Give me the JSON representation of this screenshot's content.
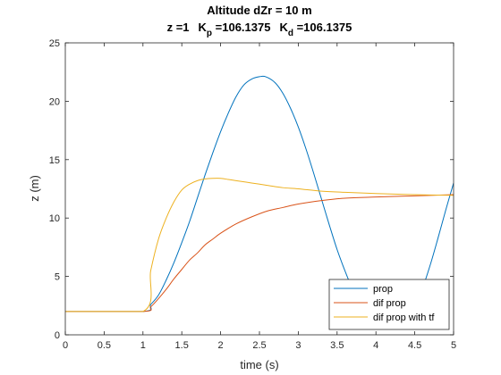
{
  "figure": {
    "title_line1": "Altitude dZr = 10 m",
    "title_line2": {
      "z_part": "z =1",
      "kp_symbol": "K",
      "kp_sub": "p",
      "kp_value": " =106.1375",
      "kd_symbol": "K",
      "kd_sub": "d",
      "kd_value": " =106.1375"
    }
  },
  "chart_data": {
    "type": "line",
    "xlabel": "time (s)",
    "ylabel": "z (m)",
    "xlim": [
      0,
      5
    ],
    "ylim": [
      0,
      25
    ],
    "x_ticks": [
      0,
      0.5,
      1,
      1.5,
      2,
      2.5,
      3,
      3.5,
      4,
      4.5,
      5
    ],
    "y_ticks": [
      0,
      5,
      10,
      15,
      20,
      25
    ],
    "x_tick_labels": [
      "0",
      "0.5",
      "1",
      "1.5",
      "2",
      "2.5",
      "3",
      "3.5",
      "4",
      "4.5",
      "5"
    ],
    "y_tick_labels": [
      "0",
      "5",
      "10",
      "15",
      "20",
      "25"
    ],
    "grid": false,
    "legend_position": "bottom-right",
    "series": [
      {
        "name": "prop",
        "color": "#0072BD",
        "x": [
          0,
          1.0,
          1.1,
          1.2,
          1.3,
          1.4,
          1.5,
          1.6,
          1.7,
          1.8,
          1.9,
          2.0,
          2.1,
          2.2,
          2.3,
          2.4,
          2.5,
          2.58,
          2.7,
          2.8,
          2.9,
          3.0,
          3.1,
          3.2,
          3.3,
          3.4,
          3.5,
          3.6,
          3.7,
          3.8,
          3.9,
          4.0,
          4.1,
          4.2,
          4.3,
          4.4,
          4.5,
          4.6,
          4.7,
          4.8,
          4.9,
          5.0
        ],
        "y": [
          2,
          2,
          2.6,
          3.4,
          4.7,
          6.2,
          7.9,
          9.7,
          11.7,
          13.7,
          15.6,
          17.4,
          19.0,
          20.4,
          21.4,
          21.9,
          22.1,
          22.1,
          21.6,
          20.7,
          19.4,
          17.8,
          15.9,
          13.8,
          11.6,
          9.4,
          7.3,
          5.5,
          3.9,
          2.8,
          2.1,
          2.0,
          2.0,
          2.0,
          2.0,
          2.0,
          2.5,
          4.0,
          6.0,
          8.3,
          10.7,
          13.0
        ]
      },
      {
        "name": "dif prop",
        "color": "#D95319",
        "x": [
          0,
          1.0,
          1.1,
          1.2,
          1.3,
          1.4,
          1.5,
          1.6,
          1.7,
          1.8,
          1.9,
          2.0,
          2.2,
          2.4,
          2.6,
          2.8,
          3.0,
          3.3,
          3.6,
          4.0,
          4.5,
          5.0
        ],
        "y": [
          2,
          2,
          2.4,
          3.1,
          3.9,
          4.8,
          5.6,
          6.4,
          7.0,
          7.7,
          8.2,
          8.7,
          9.5,
          10.1,
          10.6,
          10.9,
          11.2,
          11.5,
          11.7,
          11.8,
          11.9,
          12.0
        ]
      },
      {
        "name": "dif prop with tf",
        "color": "#EDB120",
        "x": [
          0,
          1.0,
          1.1,
          1.2,
          1.3,
          1.4,
          1.5,
          1.6,
          1.7,
          1.8,
          1.9,
          2.0,
          2.1,
          2.2,
          2.4,
          2.6,
          2.8,
          3.0,
          3.3,
          3.6,
          4.0,
          4.5,
          5.0
        ],
        "y": [
          2,
          2,
          5.5,
          8.2,
          10.0,
          11.4,
          12.4,
          12.9,
          13.2,
          13.35,
          13.4,
          13.4,
          13.3,
          13.2,
          13.0,
          12.8,
          12.6,
          12.5,
          12.3,
          12.2,
          12.1,
          12.0,
          11.95
        ]
      }
    ]
  }
}
